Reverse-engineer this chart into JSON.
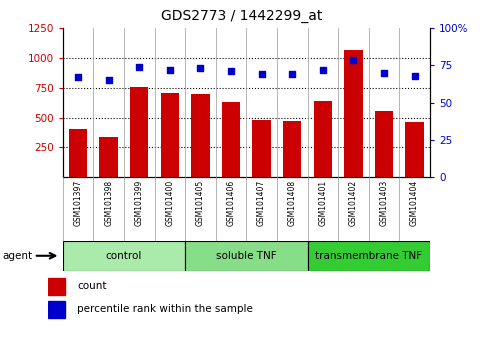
{
  "title": "GDS2773 / 1442299_at",
  "samples": [
    "GSM101397",
    "GSM101398",
    "GSM101399",
    "GSM101400",
    "GSM101405",
    "GSM101406",
    "GSM101407",
    "GSM101408",
    "GSM101401",
    "GSM101402",
    "GSM101403",
    "GSM101404"
  ],
  "counts": [
    400,
    340,
    760,
    710,
    700,
    630,
    480,
    470,
    640,
    1070,
    555,
    460
  ],
  "percentiles": [
    67,
    65,
    74,
    72,
    73,
    71,
    69,
    69,
    72,
    79,
    70,
    68
  ],
  "groups": [
    {
      "label": "control",
      "start": 0,
      "end": 4,
      "color": "#aaeaaa"
    },
    {
      "label": "soluble TNF",
      "start": 4,
      "end": 8,
      "color": "#88dd88"
    },
    {
      "label": "transmembrane TNF",
      "start": 8,
      "end": 12,
      "color": "#33cc33"
    }
  ],
  "ylim_left": [
    0,
    1250
  ],
  "ylim_right": [
    0,
    100
  ],
  "yticks_left": [
    250,
    500,
    750,
    1000,
    1250
  ],
  "yticks_right": [
    0,
    25,
    50,
    75,
    100
  ],
  "bar_color": "#cc0000",
  "dot_color": "#0000cc",
  "plot_bg": "#ffffff",
  "tick_bg": "#dddddd",
  "ylabel_left_color": "#cc0000",
  "ylabel_right_color": "#0000cc"
}
